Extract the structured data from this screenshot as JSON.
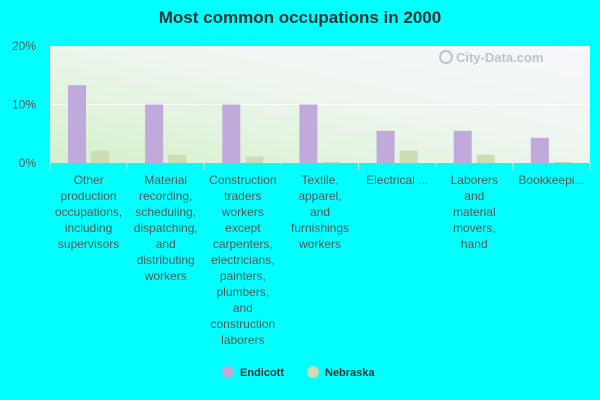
{
  "chart_data": {
    "type": "bar",
    "title": "Most common occupations in 2000",
    "categories": [
      [
        "Other",
        "production",
        "occupations,",
        "including",
        "supervisors"
      ],
      [
        "Material",
        "recording,",
        "scheduling,",
        "dispatching,",
        "and",
        "distributing",
        "workers"
      ],
      [
        "Construction",
        "traders",
        "workers",
        "except",
        "carpenters,",
        "electricians,",
        "painters,",
        "plumbers,",
        "and",
        "construction",
        "laborers"
      ],
      [
        "Textile,",
        "apparel,",
        "and",
        "furnishings",
        "workers"
      ],
      [
        "Electrical ..."
      ],
      [
        "Laborers",
        "and",
        "material",
        "movers,",
        "hand"
      ],
      [
        "Bookkeepi..."
      ]
    ],
    "series": [
      {
        "name": "Endicott",
        "color": "#c0aadc",
        "values": [
          13.3,
          10.0,
          10.0,
          10.0,
          5.5,
          5.5,
          4.3
        ]
      },
      {
        "name": "Nebraska",
        "color": "#ccdcb4",
        "values": [
          2.1,
          1.4,
          1.1,
          0.2,
          2.1,
          1.4,
          0.2
        ]
      }
    ],
    "ylim": [
      0,
      20
    ],
    "yticks": [
      "0%",
      "10%",
      "20%"
    ],
    "legend_position": "bottom",
    "watermark": "City-Data.com"
  }
}
